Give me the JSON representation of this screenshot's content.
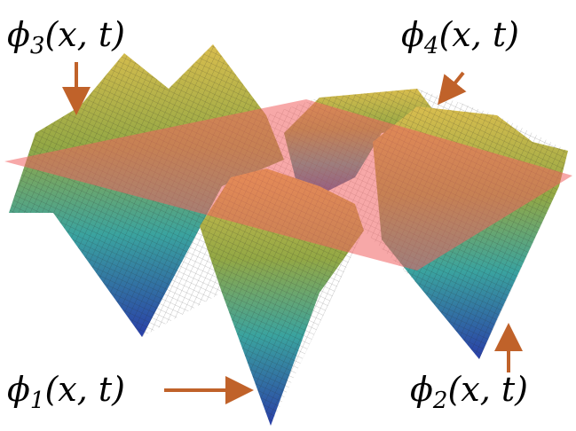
{
  "labels": [
    {
      "symbol": "ϕ",
      "index": "3",
      "args": "(x, t)"
    },
    {
      "symbol": "ϕ",
      "index": "4",
      "args": "(x, t)"
    },
    {
      "symbol": "ϕ",
      "index": "1",
      "args": "(x, t)"
    },
    {
      "symbol": "ϕ",
      "index": "2",
      "args": "(x, t)"
    }
  ]
}
